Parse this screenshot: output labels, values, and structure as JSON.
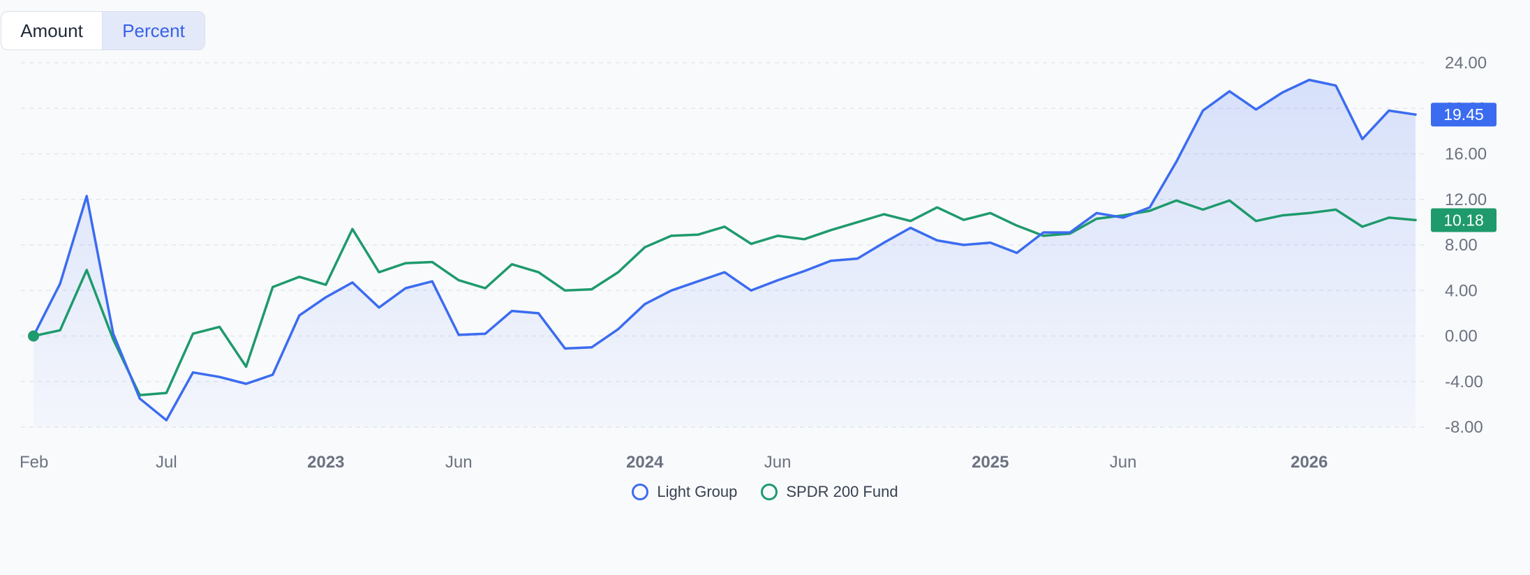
{
  "toggle": {
    "amount_label": "Amount",
    "percent_label": "Percent",
    "selected": "Percent"
  },
  "colors": {
    "series1": "#3b6cf0",
    "series2": "#1e9a6c",
    "grid": "#e3e7ee",
    "axis_text": "#6b7280"
  },
  "legend": {
    "series1": "Light Group",
    "series2": "SPDR 200 Fund"
  },
  "chart_data": {
    "type": "line",
    "title": "",
    "xlabel": "",
    "ylabel": "",
    "ylim": [
      -8,
      24
    ],
    "y_ticks": [
      "24.00",
      "20.00",
      "16.00",
      "12.00",
      "8.00",
      "4.00",
      "0.00",
      "-4.00",
      "-8.00"
    ],
    "x_ticks": [
      {
        "label": "Feb",
        "index": 0,
        "bold": false
      },
      {
        "label": "Jul",
        "index": 5,
        "bold": false
      },
      {
        "label": "2023",
        "index": 11,
        "bold": true
      },
      {
        "label": "Jun",
        "index": 16,
        "bold": false
      },
      {
        "label": "2024",
        "index": 23,
        "bold": true
      },
      {
        "label": "Jun",
        "index": 28,
        "bold": false
      },
      {
        "label": "2025",
        "index": 36,
        "bold": true
      },
      {
        "label": "Jun",
        "index": 41,
        "bold": false
      },
      {
        "label": "2026",
        "index": 48,
        "bold": true
      }
    ],
    "series": [
      {
        "name": "Light Group",
        "last_label": "19.45",
        "values": [
          0.0,
          4.6,
          12.3,
          0.2,
          -5.5,
          -7.4,
          -3.2,
          -3.6,
          -4.2,
          -3.4,
          1.8,
          3.4,
          4.7,
          2.5,
          4.2,
          4.8,
          0.1,
          0.2,
          2.2,
          2.0,
          -1.1,
          -1.0,
          0.6,
          2.8,
          4.0,
          4.8,
          5.6,
          4.0,
          4.9,
          5.7,
          6.6,
          6.8,
          8.2,
          9.5,
          8.4,
          8.0,
          8.2,
          7.3,
          9.1,
          9.1,
          10.8,
          10.4,
          11.3,
          15.3,
          19.8,
          21.5,
          19.9,
          21.4,
          22.5,
          22.0,
          17.3,
          19.8,
          19.45
        ]
      },
      {
        "name": "SPDR 200 Fund",
        "last_label": "10.18",
        "values": [
          0.0,
          0.5,
          5.8,
          -0.3,
          -5.2,
          -5.0,
          0.2,
          0.8,
          -2.7,
          4.3,
          5.2,
          4.5,
          9.4,
          5.6,
          6.4,
          6.5,
          4.9,
          4.2,
          6.3,
          5.6,
          4.0,
          4.1,
          5.6,
          7.8,
          8.8,
          8.9,
          9.6,
          8.1,
          8.8,
          8.5,
          9.3,
          10.0,
          10.7,
          10.1,
          11.3,
          10.2,
          10.8,
          9.7,
          8.8,
          9.0,
          10.3,
          10.6,
          11.0,
          11.9,
          11.1,
          11.9,
          10.1,
          10.6,
          10.8,
          11.1,
          9.6,
          10.4,
          10.18
        ]
      }
    ]
  }
}
